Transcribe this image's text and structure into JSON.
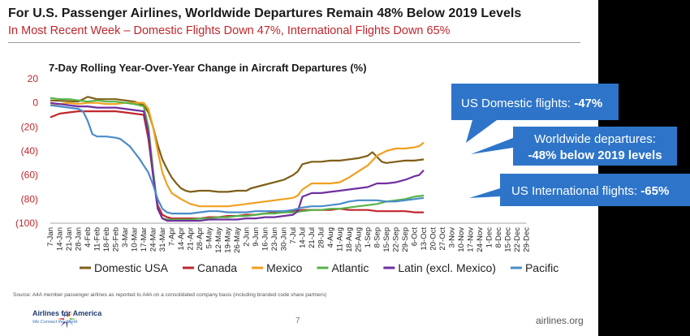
{
  "header": {
    "title": "For U.S. Passenger Airlines, Worldwide Departures Remain 48% Below 2019 Levels",
    "subtitle": "In Most Recent Week – Domestic Flights Down 47%, International Flights Down 65%"
  },
  "footer": {
    "source": "Source: A4A member passenger airlines as reported to A4A on a consolidated company basis (including branded code share partners)",
    "logo_name": "Airlines for America",
    "logo_tagline": "We Connect the World",
    "page_number": "7",
    "website": "airlines.org"
  },
  "colors": {
    "callout_blue": "#2e75c9",
    "subtitle_red": "#c0272d",
    "axis_red": "#c0272d"
  },
  "callouts": [
    {
      "label": "US Domestic flights: ",
      "value": "-47%"
    },
    {
      "line1": "Worldwide departures:",
      "line2": "-48% below 2019 levels"
    },
    {
      "label": "US International flights: ",
      "value": "-65%"
    }
  ],
  "chart_data": {
    "type": "line",
    "title": "7-Day Rolling Year-Over-Year Change in Aircraft Departures (%)",
    "xlabel": "",
    "ylabel": "",
    "ylim": [
      -100,
      20
    ],
    "yticks": [
      "20",
      "0",
      "(20)",
      "(40)",
      "(60)",
      "(80)",
      "(100)"
    ],
    "ytick_values": [
      20,
      0,
      -20,
      -40,
      -60,
      -80,
      -100
    ],
    "grid": false,
    "legend_position": "bottom",
    "x_ticks": [
      "7-Jan",
      "14-Jan",
      "21-Jan",
      "28-Jan",
      "4-Feb",
      "11-Feb",
      "18-Feb",
      "25-Feb",
      "3-Mar",
      "10-Mar",
      "17-Mar",
      "24-Mar",
      "31-Mar",
      "7-Apr",
      "14-Apr",
      "21-Apr",
      "28-Apr",
      "5-May",
      "12-May",
      "19-May",
      "26-May",
      "2-Jun",
      "9-Jun",
      "16-Jun",
      "23-Jun",
      "30-Jun",
      "7-Jul",
      "14-Jul",
      "21-Jul",
      "28-Jul",
      "4-Aug",
      "11-Aug",
      "18-Aug",
      "25-Aug",
      "1-Sep",
      "8-Sep",
      "15-Sep",
      "22-Sep",
      "29-Sep",
      "6-Oct",
      "13-Oct",
      "20-Oct",
      "27-Oct",
      "3-Nov",
      "10-Nov",
      "17-Nov",
      "24-Nov",
      "1-Dec",
      "8-Dec",
      "15-Dec",
      "22-Dec",
      "29-Dec"
    ],
    "series": [
      {
        "name": "Domestic USA",
        "color": "#7f5f17",
        "points": [
          [
            0,
            2
          ],
          [
            3,
            1
          ],
          [
            4,
            5
          ],
          [
            5,
            3
          ],
          [
            6,
            3
          ],
          [
            7,
            3
          ],
          [
            8,
            2
          ],
          [
            9,
            1
          ],
          [
            10,
            -2
          ],
          [
            10.5,
            -8
          ],
          [
            11,
            -20
          ],
          [
            11.5,
            -35
          ],
          [
            12,
            -47
          ],
          [
            12.5,
            -55
          ],
          [
            13,
            -62
          ],
          [
            13.5,
            -67
          ],
          [
            14,
            -71
          ],
          [
            14.5,
            -73
          ],
          [
            15,
            -74
          ],
          [
            16,
            -73
          ],
          [
            17,
            -73
          ],
          [
            18,
            -74
          ],
          [
            19,
            -74
          ],
          [
            20,
            -73
          ],
          [
            21,
            -73
          ],
          [
            21.5,
            -71
          ],
          [
            22,
            -70
          ],
          [
            23,
            -68
          ],
          [
            24,
            -66
          ],
          [
            25,
            -64
          ],
          [
            25.5,
            -62
          ],
          [
            26,
            -60
          ],
          [
            26.5,
            -57
          ],
          [
            27,
            -51
          ],
          [
            28,
            -49
          ],
          [
            29,
            -49
          ],
          [
            30,
            -48
          ],
          [
            31,
            -48
          ],
          [
            32,
            -47
          ],
          [
            33,
            -46
          ],
          [
            34,
            -44
          ],
          [
            34.5,
            -41
          ],
          [
            35,
            -45
          ],
          [
            35.5,
            -49
          ],
          [
            36,
            -50
          ],
          [
            37,
            -49
          ],
          [
            38,
            -48
          ],
          [
            39,
            -48
          ],
          [
            40,
            -47
          ]
        ]
      },
      {
        "name": "Canada",
        "color": "#c0272d",
        "points": [
          [
            0,
            -12
          ],
          [
            1,
            -9
          ],
          [
            2,
            -8
          ],
          [
            3,
            -7
          ],
          [
            4,
            -7
          ],
          [
            5,
            -7
          ],
          [
            6,
            -7
          ],
          [
            7,
            -7
          ],
          [
            8,
            -8
          ],
          [
            9,
            -9
          ],
          [
            10,
            -10
          ],
          [
            10.5,
            -30
          ],
          [
            11,
            -60
          ],
          [
            11.5,
            -85
          ],
          [
            12,
            -93
          ],
          [
            12.5,
            -95
          ],
          [
            13,
            -96
          ],
          [
            14,
            -96
          ],
          [
            15,
            -96
          ],
          [
            16,
            -96
          ],
          [
            17,
            -95
          ],
          [
            18,
            -95
          ],
          [
            19,
            -94
          ],
          [
            20,
            -94
          ],
          [
            21,
            -93
          ],
          [
            22,
            -93
          ],
          [
            23,
            -92
          ],
          [
            24,
            -91
          ],
          [
            25,
            -91
          ],
          [
            26,
            -90
          ],
          [
            27,
            -89
          ],
          [
            28,
            -89
          ],
          [
            29,
            -89
          ],
          [
            30,
            -89
          ],
          [
            31,
            -88
          ],
          [
            32,
            -89
          ],
          [
            33,
            -89
          ],
          [
            34,
            -89
          ],
          [
            35,
            -90
          ],
          [
            36,
            -90
          ],
          [
            37,
            -90
          ],
          [
            38,
            -90
          ],
          [
            39,
            -91
          ],
          [
            40,
            -91
          ]
        ]
      },
      {
        "name": "Mexico",
        "color": "#f0a020",
        "points": [
          [
            0,
            -2
          ],
          [
            1,
            -1
          ],
          [
            2,
            0
          ],
          [
            3,
            -1
          ],
          [
            4,
            0
          ],
          [
            5,
            0
          ],
          [
            6,
            -1
          ],
          [
            7,
            -1
          ],
          [
            8,
            0
          ],
          [
            9,
            0
          ],
          [
            10,
            0
          ],
          [
            10.5,
            -5
          ],
          [
            11,
            -20
          ],
          [
            11.5,
            -40
          ],
          [
            12,
            -58
          ],
          [
            12.5,
            -68
          ],
          [
            13,
            -75
          ],
          [
            14,
            -80
          ],
          [
            15,
            -84
          ],
          [
            16,
            -86
          ],
          [
            17,
            -86
          ],
          [
            18,
            -86
          ],
          [
            19,
            -86
          ],
          [
            20,
            -85
          ],
          [
            21,
            -84
          ],
          [
            22,
            -83
          ],
          [
            23,
            -82
          ],
          [
            24,
            -81
          ],
          [
            25,
            -80
          ],
          [
            26,
            -79
          ],
          [
            26.5,
            -77
          ],
          [
            27,
            -72
          ],
          [
            28,
            -67
          ],
          [
            29,
            -67
          ],
          [
            30,
            -67
          ],
          [
            31,
            -66
          ],
          [
            32,
            -62
          ],
          [
            33,
            -57
          ],
          [
            34,
            -52
          ],
          [
            35,
            -44
          ],
          [
            36,
            -40
          ],
          [
            37,
            -38
          ],
          [
            38,
            -38
          ],
          [
            39,
            -37
          ],
          [
            39.5,
            -36
          ],
          [
            40,
            -33
          ]
        ]
      },
      {
        "name": "Atlantic",
        "color": "#56b447",
        "points": [
          [
            0,
            4
          ],
          [
            1,
            3
          ],
          [
            2,
            3
          ],
          [
            3,
            2
          ],
          [
            4,
            1
          ],
          [
            5,
            2
          ],
          [
            6,
            1
          ],
          [
            7,
            1
          ],
          [
            8,
            0
          ],
          [
            9,
            -1
          ],
          [
            10,
            -3
          ],
          [
            10.5,
            -20
          ],
          [
            11,
            -55
          ],
          [
            11.5,
            -88
          ],
          [
            12,
            -96
          ],
          [
            12.5,
            -97
          ],
          [
            13,
            -97
          ],
          [
            14,
            -97
          ],
          [
            15,
            -97
          ],
          [
            16,
            -96
          ],
          [
            17,
            -96
          ],
          [
            18,
            -95
          ],
          [
            19,
            -95
          ],
          [
            20,
            -94
          ],
          [
            21,
            -94
          ],
          [
            22,
            -93
          ],
          [
            23,
            -92
          ],
          [
            24,
            -92
          ],
          [
            25,
            -91
          ],
          [
            26,
            -91
          ],
          [
            27,
            -90
          ],
          [
            28,
            -89
          ],
          [
            29,
            -89
          ],
          [
            30,
            -88
          ],
          [
            31,
            -88
          ],
          [
            32,
            -87
          ],
          [
            33,
            -86
          ],
          [
            34,
            -85
          ],
          [
            35,
            -84
          ],
          [
            36,
            -82
          ],
          [
            37,
            -81
          ],
          [
            38,
            -80
          ],
          [
            39,
            -78
          ],
          [
            40,
            -77
          ]
        ]
      },
      {
        "name": "Latin (excl. Mexico)",
        "color": "#7030a0",
        "points": [
          [
            0,
            0
          ],
          [
            1,
            -1
          ],
          [
            2,
            -2
          ],
          [
            3,
            -3
          ],
          [
            4,
            -3
          ],
          [
            5,
            -4
          ],
          [
            6,
            -4
          ],
          [
            7,
            -4
          ],
          [
            8,
            -5
          ],
          [
            9,
            -6
          ],
          [
            10,
            -7
          ],
          [
            10.5,
            -25
          ],
          [
            11,
            -60
          ],
          [
            11.5,
            -88
          ],
          [
            12,
            -96
          ],
          [
            12.5,
            -98
          ],
          [
            13,
            -98
          ],
          [
            14,
            -98
          ],
          [
            15,
            -98
          ],
          [
            16,
            -98
          ],
          [
            17,
            -97
          ],
          [
            18,
            -97
          ],
          [
            19,
            -97
          ],
          [
            20,
            -97
          ],
          [
            21,
            -96
          ],
          [
            22,
            -96
          ],
          [
            23,
            -95
          ],
          [
            24,
            -95
          ],
          [
            25,
            -94
          ],
          [
            26,
            -93
          ],
          [
            26.5,
            -90
          ],
          [
            27,
            -78
          ],
          [
            28,
            -75
          ],
          [
            29,
            -75
          ],
          [
            30,
            -74
          ],
          [
            31,
            -73
          ],
          [
            32,
            -72
          ],
          [
            33,
            -71
          ],
          [
            34,
            -70
          ],
          [
            35,
            -67
          ],
          [
            36,
            -67
          ],
          [
            37,
            -66
          ],
          [
            38,
            -64
          ],
          [
            39,
            -61
          ],
          [
            39.5,
            -60
          ],
          [
            40,
            -56
          ]
        ]
      },
      {
        "name": "Pacific",
        "color": "#4a8cc9",
        "points": [
          [
            0,
            -2
          ],
          [
            1,
            -3
          ],
          [
            2,
            -4
          ],
          [
            3,
            -5
          ],
          [
            3.5,
            -7
          ],
          [
            4,
            -15
          ],
          [
            4.5,
            -26
          ],
          [
            5,
            -28
          ],
          [
            6,
            -28
          ],
          [
            7,
            -29
          ],
          [
            7.5,
            -30
          ],
          [
            8,
            -33
          ],
          [
            8.5,
            -36
          ],
          [
            9,
            -41
          ],
          [
            9.5,
            -46
          ],
          [
            10,
            -52
          ],
          [
            10.5,
            -58
          ],
          [
            11,
            -68
          ],
          [
            11.5,
            -80
          ],
          [
            12,
            -88
          ],
          [
            12.5,
            -91
          ],
          [
            13,
            -92
          ],
          [
            14,
            -92
          ],
          [
            15,
            -92
          ],
          [
            16,
            -91
          ],
          [
            17,
            -90
          ],
          [
            18,
            -90
          ],
          [
            19,
            -91
          ],
          [
            20,
            -91
          ],
          [
            21,
            -91
          ],
          [
            22,
            -90
          ],
          [
            23,
            -90
          ],
          [
            24,
            -90
          ],
          [
            25,
            -90
          ],
          [
            26,
            -89
          ],
          [
            27,
            -87
          ],
          [
            28,
            -86
          ],
          [
            29,
            -86
          ],
          [
            30,
            -85
          ],
          [
            31,
            -84
          ],
          [
            32,
            -82
          ],
          [
            33,
            -81
          ],
          [
            34,
            -81
          ],
          [
            35,
            -81
          ],
          [
            36,
            -82
          ],
          [
            37,
            -82
          ],
          [
            38,
            -81
          ],
          [
            39,
            -80
          ],
          [
            40,
            -79
          ]
        ]
      }
    ]
  }
}
